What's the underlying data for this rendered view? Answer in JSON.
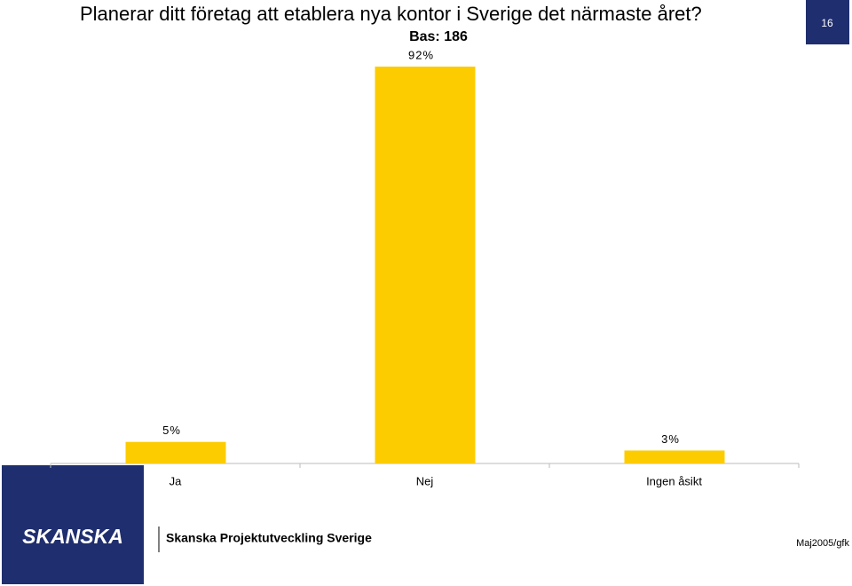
{
  "chart_data": {
    "type": "bar",
    "title": "Planerar ditt företag att etablera nya kontor i Sverige det närmaste året?",
    "subtitle": "Bas: 186",
    "categories": [
      "Ja",
      "Nej",
      "Ingen åsikt"
    ],
    "values": [
      5,
      92,
      3
    ],
    "value_labels": [
      "5%",
      "92%",
      "3%"
    ],
    "color": "#fccc00"
  },
  "page_number": "16",
  "footer": {
    "logo": "SKANSKA",
    "company": "Skanska Projektutveckling Sverige",
    "date": "Maj2005/gfk"
  }
}
